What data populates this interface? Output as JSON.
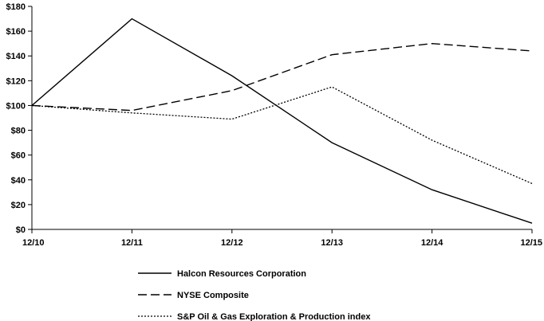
{
  "chart_data": {
    "type": "line",
    "x": [
      "12/10",
      "12/11",
      "12/12",
      "12/13",
      "12/14",
      "12/15"
    ],
    "ylim": [
      0,
      180
    ],
    "yticks": [
      0,
      20,
      40,
      60,
      80,
      100,
      120,
      140,
      160,
      180
    ],
    "ytick_labels": [
      "$0",
      "$20",
      "$40",
      "$60",
      "$80",
      "$100",
      "$120",
      "$140",
      "$160",
      "$180"
    ],
    "grid": false,
    "legend_position": "bottom",
    "series": [
      {
        "name": "Halcon Resources Corporation",
        "style": "solid",
        "values": [
          100,
          170,
          124,
          70,
          32,
          5
        ]
      },
      {
        "name": "NYSE Composite",
        "style": "dashed",
        "values": [
          100,
          96,
          112,
          141,
          150,
          144
        ]
      },
      {
        "name": "S&P Oil & Gas Exploration & Production index",
        "style": "dotted",
        "values": [
          100,
          94,
          89,
          115,
          72,
          37
        ]
      }
    ]
  }
}
